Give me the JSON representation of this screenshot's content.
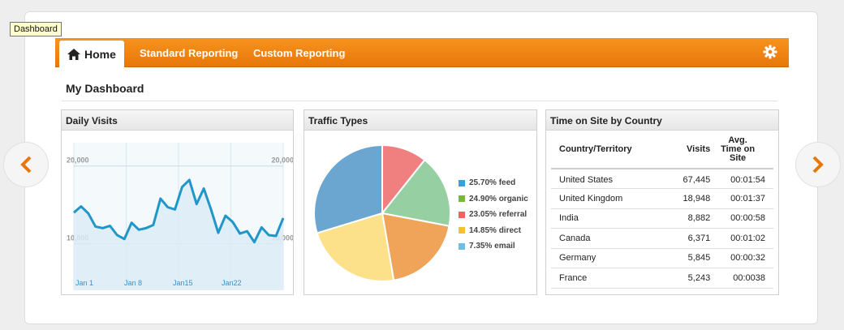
{
  "tooltip": "Dashboard",
  "nav": {
    "home": "Home",
    "standard_reporting": "Standard Reporting",
    "custom_reporting": "Custom Reporting"
  },
  "dashboard_title": "My Dashboard",
  "colors": {
    "accent": "#f08a14",
    "line": "#2196c9"
  },
  "daily_visits": {
    "title": "Daily Visits",
    "chart_data": {
      "type": "area",
      "y_tick_labels": [
        "20,000",
        "10,000"
      ],
      "y_ticks": [
        20000,
        10000
      ],
      "x_tick_labels": [
        "Jan 1",
        "Jan 8",
        "Jan15",
        "Jan22"
      ],
      "ylim": [
        4000,
        23000
      ],
      "values": [
        14000,
        14800,
        13900,
        12200,
        12000,
        12300,
        11100,
        10600,
        12700,
        11800,
        12000,
        12400,
        15800,
        14700,
        14400,
        17300,
        18200,
        15100,
        17100,
        14400,
        11400,
        13600,
        12800,
        11300,
        11600,
        10200,
        12100,
        11100,
        11000,
        13300
      ]
    }
  },
  "traffic_types": {
    "title": "Traffic Types",
    "chart_data": {
      "type": "pie",
      "slices": [
        {
          "label": "25.70% feed",
          "value": 25.7,
          "color": "#37a0d9"
        },
        {
          "label": "24.90% organic",
          "value": 24.9,
          "color": "#74b842"
        },
        {
          "label": "23.05% referral",
          "value": 23.05,
          "color": "#e8665a"
        },
        {
          "label": "14.85% direct",
          "value": 14.85,
          "color": "#f1c232"
        },
        {
          "label": "7.35% email",
          "value": 7.35,
          "color": "#6bbfe3"
        }
      ],
      "draw_order": [
        {
          "value": 10.7,
          "color": "#f08080"
        },
        {
          "value": 17.3,
          "color": "#96cfa2"
        },
        {
          "value": 19.3,
          "color": "#f0a45a"
        },
        {
          "value": 23.0,
          "color": "#fde08a"
        },
        {
          "value": 29.7,
          "color": "#6aa6d0"
        }
      ]
    }
  },
  "time_on_site": {
    "title": "Time on Site by Country",
    "headers": {
      "country": "Country/Territory",
      "visits": "Visits",
      "avg_l1": "Avg.",
      "avg_l2": "Time on",
      "avg_l3": "Site"
    },
    "rows": [
      {
        "country": "United States",
        "visits": "67,445",
        "time": "00:01:54"
      },
      {
        "country": "United Kingdom",
        "visits": "18,948",
        "time": "00:01:37"
      },
      {
        "country": "India",
        "visits": "8,882",
        "time": "00:00:58"
      },
      {
        "country": "Canada",
        "visits": "6,371",
        "time": "00:01:02"
      },
      {
        "country": "Germany",
        "visits": "5,845",
        "time": "00:00:32"
      },
      {
        "country": "France",
        "visits": "5,243",
        "time": "00:0038"
      }
    ]
  }
}
